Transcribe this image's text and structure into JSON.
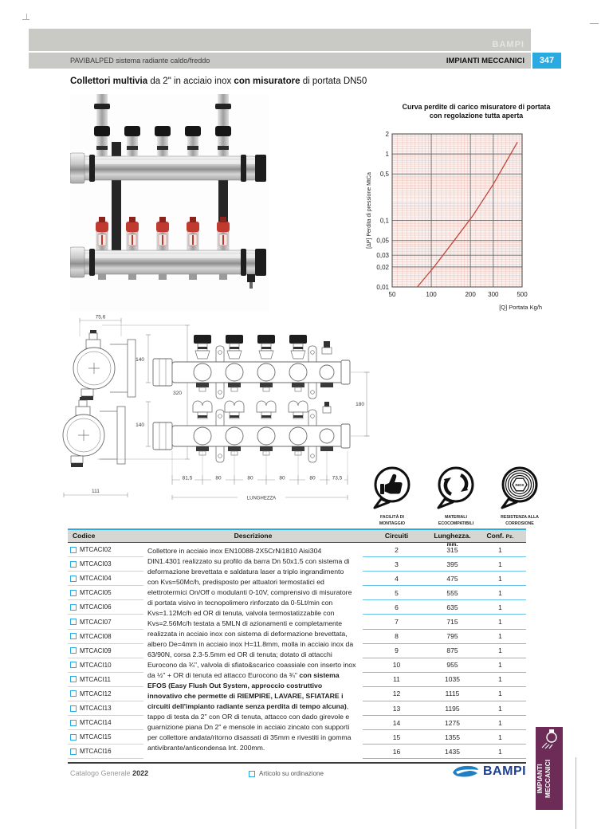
{
  "page": {
    "brand_watermark": "BAMPI",
    "breadcrumb": "PAVIBALPED sistema radiante caldo/freddo",
    "section": "IMPIANTI MECCANICI",
    "page_number": "347"
  },
  "title": {
    "segments": [
      {
        "text": "Collettori multivia",
        "bold": true
      },
      {
        "text": " da 2\" in acciaio inox ",
        "bold": false
      },
      {
        "text": "con misuratore",
        "bold": true
      },
      {
        "text": " di portata DN50",
        "bold": false
      }
    ]
  },
  "chart_data": {
    "type": "line",
    "title": "Curva perdite di carico misuratore di portata",
    "subtitle": "con regolazione tutta aperta",
    "ylabel": "[ΔP]  Perdita di pressione MtCa",
    "xlabel": "[Q]  Portata Kg/h",
    "x_scale": "log",
    "y_scale": "log",
    "xlim": [
      50,
      500
    ],
    "ylim": [
      0.01,
      2
    ],
    "x_ticks": [
      50,
      100,
      200,
      300,
      500
    ],
    "x_tick_labels": [
      "50",
      "100",
      "200",
      "300",
      "500"
    ],
    "y_ticks": [
      2,
      1,
      0.5,
      0.1,
      0.05,
      0.03,
      0.02,
      0.01
    ],
    "y_tick_labels": [
      "2",
      "1",
      "0,5",
      "0,1",
      "0,05",
      "0,03",
      "0,02",
      "0,01"
    ],
    "grid": "log-log graph paper",
    "legend_position": "none",
    "line_color": "#c2453a",
    "series": [
      {
        "name": "Perdita di carico misuratore con regolazione tutta aperta",
        "points": [
          [
            78,
            0.01
          ],
          [
            105,
            0.02
          ],
          [
            150,
            0.05
          ],
          [
            210,
            0.12
          ],
          [
            300,
            0.35
          ],
          [
            460,
            1.5
          ]
        ]
      }
    ]
  },
  "drawing": {
    "dims": {
      "width_top": "75,6",
      "height_overall": "320",
      "width_bottom": "111",
      "row1_height": "140",
      "row2_height": "140",
      "rows_spacing": "180",
      "seg1": "81,5",
      "seg2": "80",
      "seg3": "80",
      "seg4": "80",
      "seg5": "80",
      "seg6": "73,5",
      "length_label": "LUNGHEZZA"
    }
  },
  "badges": [
    {
      "icon": "thumbs-up-icon",
      "caption_lines": [
        "FACILITÀ DI",
        "MONTAGGIO"
      ]
    },
    {
      "icon": "recycle-icon",
      "caption_lines": [
        "MATERIALI",
        "ECOCOMPATIBILI"
      ]
    },
    {
      "icon": "inox-icon",
      "caption_lines": [
        "RESISTENZA ALLA",
        "CORROSIONE"
      ],
      "inner_text": "INOX"
    }
  ],
  "table": {
    "headers": {
      "code": "Codice",
      "description": "Descrizione",
      "circuits": "Circuiti",
      "length": "Lunghezza.",
      "length_unit": "mm.",
      "pack": "Conf.",
      "pack_unit": "Pz."
    },
    "description_segments": [
      {
        "text": "Collettore in acciaio inox EN10088-2X5CrNi1810 Aisi304 DIN1.4301 realizzato su profilo da barra Dn 50x1.5 con sistema di deformazione brevettata e saldatura laser a triplo ingrandimento con Kvs=50Mc/h, predisposto per attuatori termostatici ed elettrotermici On/Off o modulanti 0-10V, comprensivo di misuratore di portata visivo in tecnopolimero rinforzato da 0-5Lt/min con Kvs=1.12Mc/h ed OR di tenuta, valvola termostatizzabile con Kvs=2.56Mc/h testata a 5MLN di azionamenti e completamente realizzata in acciaio inox con sistema di deformazione brevettata, albero De=4mm in acciaio inox H=11.8mm, molla in acciaio inox da 63/90N, corsa 2.3-5.5mm ed OR di tenuta; dotato di attacchi Eurocono da ¾\", valvola di sfiato&scarico coassiale con inserto inox da ½\" + OR di tenuta ed attacco Eurocono da ¾\" ",
        "bold": false
      },
      {
        "text": "con sistema EFOS (Easy Flush Out System, approccio costruttivo innovativo che permette di RIEMPIRE, LAVARE, SFIATARE i circuiti dell'impianto radiante senza perdita di tempo alcuna)",
        "bold": true
      },
      {
        "text": ", tappo di testa da 2\" con OR di tenuta, attacco con dado girevole e guarnizione piana Dn 2\" e mensole in acciaio zincato con supporti per collettore andata/ritorno disassati di 35mm e rivestiti in gomma antivibrante/anticondensa Int. 200mm.",
        "bold": false
      }
    ],
    "rows": [
      {
        "code": "MTCACI02",
        "circuits": "2",
        "length": "315",
        "pack": "1"
      },
      {
        "code": "MTCACI03",
        "circuits": "3",
        "length": "395",
        "pack": "1"
      },
      {
        "code": "MTCACI04",
        "circuits": "4",
        "length": "475",
        "pack": "1"
      },
      {
        "code": "MTCACI05",
        "circuits": "5",
        "length": "555",
        "pack": "1"
      },
      {
        "code": "MTCACI06",
        "circuits": "6",
        "length": "635",
        "pack": "1"
      },
      {
        "code": "MTCACI07",
        "circuits": "7",
        "length": "715",
        "pack": "1"
      },
      {
        "code": "MTCACI08",
        "circuits": "8",
        "length": "795",
        "pack": "1"
      },
      {
        "code": "MTCACI09",
        "circuits": "9",
        "length": "875",
        "pack": "1"
      },
      {
        "code": "MTCACI10",
        "circuits": "10",
        "length": "955",
        "pack": "1"
      },
      {
        "code": "MTCACI11",
        "circuits": "11",
        "length": "1035",
        "pack": "1"
      },
      {
        "code": "MTCACI12",
        "circuits": "12",
        "length": "1115",
        "pack": "1"
      },
      {
        "code": "MTCACI13",
        "circuits": "13",
        "length": "1195",
        "pack": "1"
      },
      {
        "code": "MTCACI14",
        "circuits": "14",
        "length": "1275",
        "pack": "1"
      },
      {
        "code": "MTCACI15",
        "circuits": "15",
        "length": "1355",
        "pack": "1"
      },
      {
        "code": "MTCACI16",
        "circuits": "16",
        "length": "1435",
        "pack": "1"
      }
    ]
  },
  "footer": {
    "catalog": "Catalogo Generale",
    "year": "2022",
    "order_note": "Articolo su ordinazione",
    "logo_text": "BAMPI"
  },
  "side_tab": {
    "lines": [
      "IMPIANTI",
      "MECCANICI"
    ]
  },
  "colors": {
    "accent_cyan": "#29abe2",
    "tab_plum": "#6d2c58",
    "logo_navy": "#1c3f94",
    "logo_blue": "#1e7fc4",
    "chart_line": "#c2453a",
    "header_gray": "#c9cac6"
  }
}
